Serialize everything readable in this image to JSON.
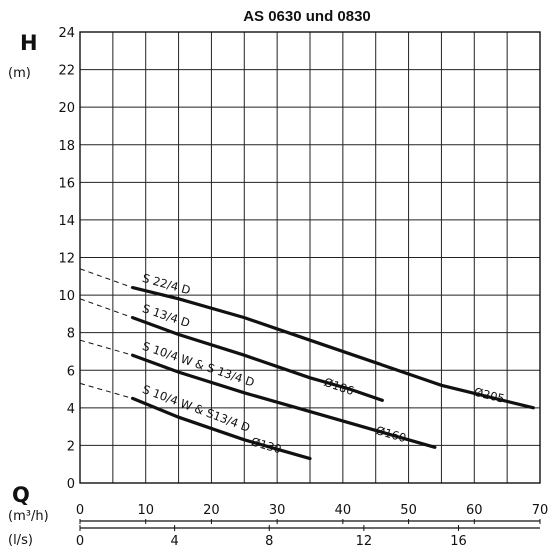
{
  "chart_data": {
    "type": "line",
    "title": "AS 0630 und 0830",
    "ylabel": "H",
    "ylabel_unit": "(m)",
    "xlabel": "Q",
    "xlabel_unit_primary": "(m³/h)",
    "xlabel_unit_secondary": "(l/s)",
    "xlim": [
      0,
      70
    ],
    "ylim": [
      0,
      24
    ],
    "x_ticks": [
      "0",
      "10",
      "20",
      "30",
      "40",
      "50",
      "60",
      "70"
    ],
    "x_ticks_values": [
      0,
      10,
      20,
      30,
      40,
      50,
      60,
      70
    ],
    "x2_ticks": [
      "0",
      "4",
      "8",
      "12",
      "16"
    ],
    "x2_ticks_values": [
      0,
      4,
      8,
      12,
      16
    ],
    "y_ticks": [
      "0",
      "2",
      "4",
      "6",
      "8",
      "10",
      "12",
      "14",
      "16",
      "18",
      "20",
      "22",
      "24"
    ],
    "y_ticks_values": [
      0,
      2,
      4,
      6,
      8,
      10,
      12,
      14,
      16,
      18,
      20,
      22,
      24
    ],
    "grid": true,
    "series": [
      {
        "name": "S 22/4 D",
        "impeller": "Ø205",
        "dashed_extension": [
          [
            0,
            11.4
          ],
          [
            8,
            10.4
          ]
        ],
        "points": [
          [
            8,
            10.4
          ],
          [
            15,
            9.8
          ],
          [
            25,
            8.8
          ],
          [
            35,
            7.6
          ],
          [
            45,
            6.4
          ],
          [
            55,
            5.2
          ],
          [
            62,
            4.6
          ],
          [
            69,
            4.0
          ]
        ]
      },
      {
        "name": "S 13/4 D",
        "impeller": "Ø186",
        "dashed_extension": [
          [
            0,
            9.8
          ],
          [
            8,
            8.8
          ]
        ],
        "points": [
          [
            8,
            8.8
          ],
          [
            15,
            7.9
          ],
          [
            25,
            6.8
          ],
          [
            35,
            5.6
          ],
          [
            41,
            5.0
          ],
          [
            46,
            4.4
          ]
        ]
      },
      {
        "name": "S 10/4 W & S 13/4 D",
        "impeller": "Ø160",
        "dashed_extension": [
          [
            0,
            7.6
          ],
          [
            8,
            6.8
          ]
        ],
        "points": [
          [
            8,
            6.8
          ],
          [
            15,
            5.9
          ],
          [
            25,
            4.8
          ],
          [
            35,
            3.8
          ],
          [
            45,
            2.8
          ],
          [
            54,
            1.9
          ]
        ]
      },
      {
        "name": "S 10/4 W & S13/4 D",
        "impeller": "Ø130",
        "dashed_extension": [
          [
            0,
            5.3
          ],
          [
            8,
            4.5
          ]
        ],
        "points": [
          [
            8,
            4.5
          ],
          [
            15,
            3.5
          ],
          [
            25,
            2.3
          ],
          [
            30,
            1.8
          ],
          [
            35,
            1.3
          ]
        ]
      }
    ]
  }
}
